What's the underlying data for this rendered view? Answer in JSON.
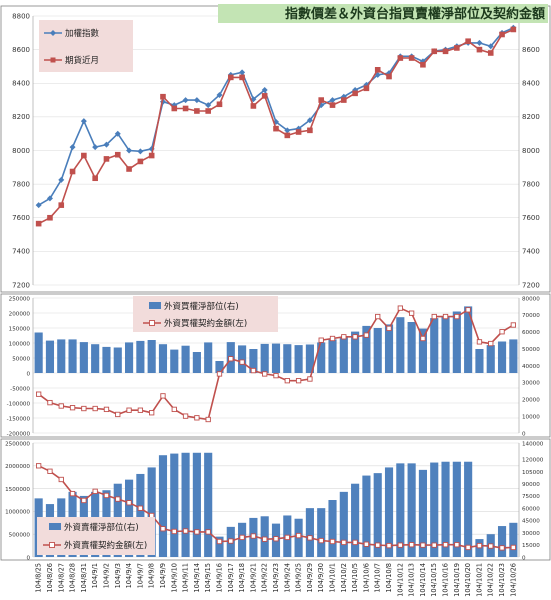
{
  "title": "指數價差＆外資台指買賣權淨部位及契約金額",
  "colors": {
    "blue": "#4a7ebb",
    "red": "#c0504d",
    "bar": "#4f81bd",
    "title_bg": "#c3e4b4",
    "legend_bg": "#f2dcdb",
    "grid": "#d9d9d9",
    "border": "#7f7f7f"
  },
  "x_labels": [
    "104/8/25",
    "104/8/26",
    "104/8/27",
    "104/8/28",
    "104/8/31",
    "104/9/1",
    "104/9/2",
    "104/9/3",
    "104/9/4",
    "104/9/7",
    "104/9/8",
    "104/9/9",
    "104/9/10",
    "104/9/11",
    "104/9/14",
    "104/9/15",
    "104/9/16",
    "104/9/17",
    "104/9/18",
    "104/9/21",
    "104/9/22",
    "104/9/23",
    "104/9/24",
    "104/9/25",
    "104/9/29",
    "104/9/30",
    "104/10/1",
    "104/10/2",
    "104/10/5",
    "104/10/6",
    "104/10/7",
    "104/10/8",
    "104/10/12",
    "104/10/13",
    "104/10/14",
    "104/10/15",
    "104/10/16",
    "104/10/19",
    "104/10/20",
    "104/10/21",
    "104/10/22",
    "104/10/23",
    "104/10/26"
  ],
  "chart_data": [
    {
      "type": "line",
      "title": "指數價差＆外資台指買賣權淨部位及契約金額",
      "legend_position": "top-left",
      "ylim": [
        7200,
        8800
      ],
      "y_ticks": [
        "7200",
        "7400",
        "7600",
        "7800",
        "8000",
        "8200",
        "8400",
        "8600",
        "8800"
      ],
      "y2lim": [
        7200,
        8800
      ],
      "y2_ticks": [
        "7200",
        "7400",
        "7600",
        "7800",
        "8000",
        "8200",
        "8400",
        "8600",
        "8800"
      ],
      "grid": true,
      "series": [
        {
          "name": "加權指數",
          "color": "#4a7ebb",
          "marker": "diamond",
          "values": [
            7675,
            7715,
            7825,
            8020,
            8175,
            8020,
            8035,
            8100,
            8000,
            7995,
            8010,
            8290,
            8270,
            8300,
            8300,
            8270,
            8330,
            8450,
            8465,
            8305,
            8360,
            8170,
            8120,
            8130,
            8180,
            8270,
            8300,
            8320,
            8360,
            8390,
            8450,
            8460,
            8560,
            8560,
            8530,
            8590,
            8600,
            8620,
            8640,
            8640,
            8620,
            8700,
            8730
          ]
        },
        {
          "name": "期貨近月",
          "color": "#c0504d",
          "marker": "square",
          "values": [
            7565,
            7600,
            7675,
            7875,
            7970,
            7835,
            7950,
            7975,
            7890,
            7935,
            7970,
            8320,
            8250,
            8250,
            8235,
            8235,
            8275,
            8435,
            8435,
            8265,
            8325,
            8130,
            8090,
            8110,
            8120,
            8300,
            8270,
            8300,
            8340,
            8370,
            8480,
            8440,
            8550,
            8550,
            8510,
            8590,
            8590,
            8610,
            8650,
            8600,
            8580,
            8690,
            8720
          ]
        }
      ]
    },
    {
      "type": "bar",
      "legend_position": "top-center",
      "ylim": [
        -200000,
        250000
      ],
      "y_ticks": [
        "-200000",
        "-150000",
        "-100000",
        "-50000",
        "0",
        "50000",
        "100000",
        "150000",
        "200000",
        "250000"
      ],
      "y2lim": [
        0,
        80000
      ],
      "y2_ticks": [
        "0",
        "10000",
        "20000",
        "30000",
        "40000",
        "50000",
        "60000",
        "70000",
        "80000"
      ],
      "grid": true,
      "series": [
        {
          "name": "外資買權淨部位(右)",
          "type": "bar",
          "axis": "left",
          "values": [
            135000,
            108000,
            112000,
            112000,
            103000,
            96000,
            87000,
            85000,
            102000,
            107000,
            110000,
            96000,
            78000,
            91000,
            70000,
            102000,
            40000,
            103000,
            92000,
            80000,
            97000,
            98000,
            96000,
            93000,
            95000,
            102000,
            112000,
            120000,
            138000,
            157000,
            150000,
            162000,
            186000,
            170000,
            148000,
            183000,
            188000,
            205000,
            222000,
            80000,
            93000,
            105000,
            112000
          ]
        },
        {
          "name": "外資買權契約金額(左)",
          "type": "line",
          "axis": "right",
          "values": [
            23000,
            18000,
            16000,
            15000,
            14500,
            14500,
            14000,
            11000,
            13500,
            13500,
            12000,
            22000,
            14000,
            10000,
            9000,
            8000,
            35000,
            44000,
            42000,
            37000,
            35000,
            34000,
            31000,
            31000,
            32000,
            55000,
            56000,
            57000,
            57000,
            58000,
            69000,
            62000,
            74000,
            71000,
            56000,
            69000,
            69000,
            69000,
            73000,
            54000,
            53000,
            60000,
            64000
          ]
        }
      ]
    },
    {
      "type": "bar",
      "legend_position": "bottom-left",
      "ylim": [
        0,
        2500000
      ],
      "y_ticks": [
        "0",
        "500000",
        "1000000",
        "1500000",
        "2000000",
        "2500000"
      ],
      "y2lim": [
        0,
        140000
      ],
      "y2_ticks": [
        "0",
        "15000",
        "30000",
        "45000",
        "60000",
        "75000",
        "90000",
        "105000",
        "120000",
        "140000"
      ],
      "grid": true,
      "series": [
        {
          "name": "外資賣權淨部位(右)",
          "type": "bar",
          "axis": "right",
          "values": [
            72000,
            65000,
            72000,
            80000,
            75000,
            80000,
            82000,
            90000,
            95000,
            102000,
            110000,
            125000,
            127000,
            128000,
            128000,
            128000,
            25000,
            37000,
            42000,
            48000,
            50000,
            41000,
            51000,
            47000,
            60000,
            60000,
            70000,
            80000,
            90000,
            100000,
            103000,
            110000,
            115000,
            115000,
            107000,
            116000,
            117000,
            117000,
            117000,
            22000,
            28000,
            38000,
            42000
          ]
        },
        {
          "name": "外資賣權契約金額(左)",
          "type": "line",
          "axis": "left",
          "values": [
            2000000,
            1880000,
            1700000,
            1390000,
            1240000,
            1440000,
            1350000,
            1270000,
            1190000,
            1070000,
            910000,
            620000,
            560000,
            570000,
            550000,
            550000,
            340000,
            350000,
            430000,
            460000,
            390000,
            400000,
            430000,
            470000,
            420000,
            360000,
            340000,
            320000,
            320000,
            280000,
            260000,
            250000,
            260000,
            270000,
            260000,
            260000,
            270000,
            270000,
            210000,
            250000,
            240000,
            200000,
            210000
          ]
        }
      ]
    }
  ]
}
